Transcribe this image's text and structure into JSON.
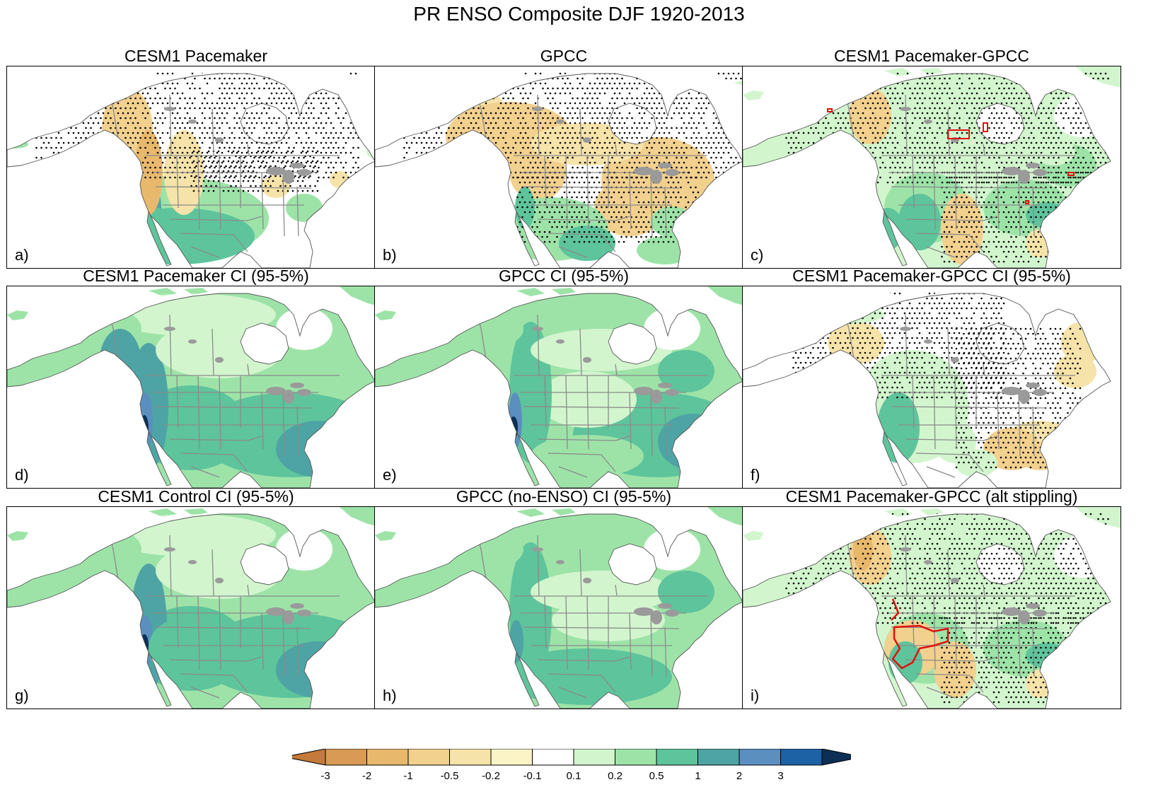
{
  "title": "PR ENSO Composite DJF 1920-2013",
  "panels": [
    {
      "title": "CESM1 Pacemaker",
      "label": "a)",
      "scheme": "comp_a"
    },
    {
      "title": "GPCC",
      "label": "b)",
      "scheme": "comp_b"
    },
    {
      "title": "CESM1 Pacemaker-GPCC",
      "label": "c)",
      "scheme": "diff_c"
    },
    {
      "title": "CESM1 Pacemaker CI (95-5%)",
      "label": "d)",
      "scheme": "ci_d"
    },
    {
      "title": "GPCC CI (95-5%)",
      "label": "e)",
      "scheme": "ci_e"
    },
    {
      "title": "CESM1 Pacemaker-GPCC CI (95-5%)",
      "label": "f)",
      "scheme": "diff_f"
    },
    {
      "title": "CESM1 Control CI (95-5%)",
      "label": "g)",
      "scheme": "ci_g"
    },
    {
      "title": "GPCC (no-ENSO) CI (95-5%)",
      "label": "h)",
      "scheme": "ci_h"
    },
    {
      "title": "CESM1 Pacemaker-GPCC (alt stippling)",
      "label": "i)",
      "scheme": "diff_i"
    }
  ],
  "colorbar": {
    "labels": [
      "-3",
      "-2",
      "-1",
      "-0.5",
      "-0.2",
      "-0.1",
      "0.1",
      "0.2",
      "0.5",
      "1",
      "2",
      "3"
    ],
    "colors": [
      "#c47a3a",
      "#d89a55",
      "#e8b86c",
      "#f2d08e",
      "#f6e3a9",
      "#fbf4c6",
      "#ffffff",
      "#d2f5cd",
      "#9de3a8",
      "#5ec49c",
      "#4ea4a4",
      "#5a8fbf",
      "#1d62a4",
      "#0d2f55"
    ],
    "under_color": "#c47a3a",
    "over_color": "#0d2f55"
  }
}
